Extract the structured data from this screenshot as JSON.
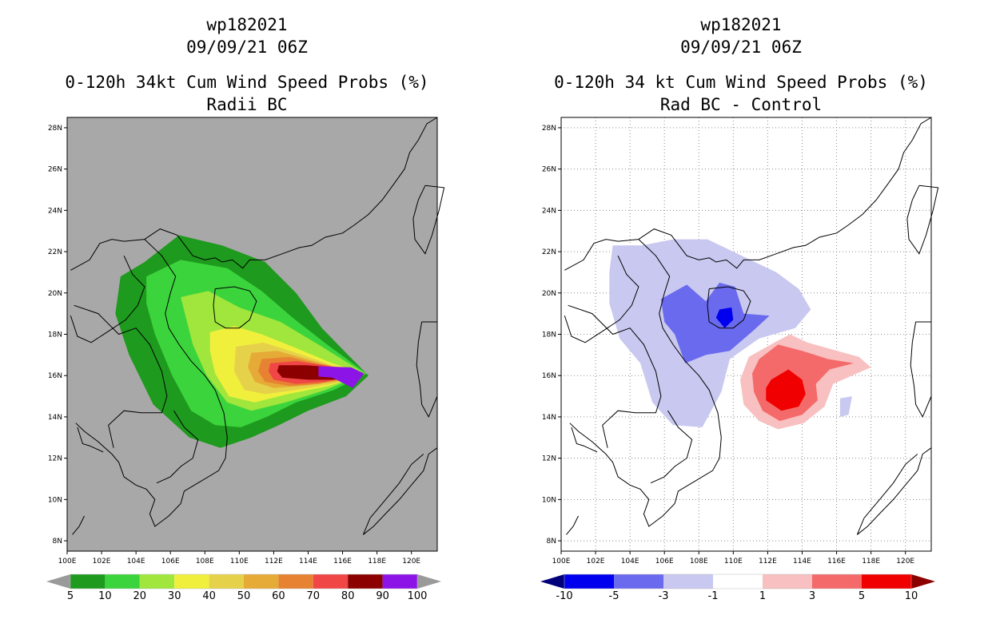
{
  "chart_data": [
    {
      "type": "heatmap",
      "name": "radii-bc",
      "title_lines": [
        "wp182021",
        "09/09/21 06Z",
        "0-120h 34kt Cum Wind Speed Probs (%)",
        "Radii BC"
      ],
      "x_ticks": [
        "100E",
        "102E",
        "104E",
        "106E",
        "108E",
        "110E",
        "112E",
        "114E",
        "116E",
        "118E",
        "120E"
      ],
      "y_ticks": [
        "8N",
        "10N",
        "12N",
        "14N",
        "16N",
        "18N",
        "20N",
        "22N",
        "24N",
        "26N",
        "28N"
      ],
      "xlim": [
        100,
        121.5
      ],
      "ylim": [
        7.5,
        28.5
      ],
      "grid": false,
      "background": "#a8a8a8",
      "colorbar": {
        "levels": [
          "5",
          "10",
          "20",
          "30",
          "40",
          "50",
          "60",
          "70",
          "80",
          "90",
          "100"
        ],
        "colors": [
          "#9a9a9a",
          "#1e9a1e",
          "#3cd43c",
          "#a0e63c",
          "#f0f03c",
          "#e6d24a",
          "#e6aa36",
          "#e68232",
          "#f04646",
          "#8c0000",
          "#8c14e6",
          "#9a9a9a"
        ]
      },
      "contours": [
        {
          "level": 5,
          "color": "#1e9a1e",
          "pts": [
            [
              104.5,
              21.5
            ],
            [
              106.5,
              22.8
            ],
            [
              109,
              22.3
            ],
            [
              111.5,
              21.5
            ],
            [
              113.3,
              20
            ],
            [
              114.8,
              18.3
            ],
            [
              116.2,
              17.1
            ],
            [
              117.5,
              16
            ],
            [
              116.2,
              15
            ],
            [
              114,
              14.3
            ],
            [
              112.3,
              13.6
            ],
            [
              110.7,
              13
            ],
            [
              108.9,
              12.5
            ],
            [
              107.1,
              13
            ],
            [
              105,
              14.6
            ],
            [
              103.6,
              17
            ],
            [
              102.8,
              19
            ],
            [
              103.1,
              20.8
            ]
          ]
        },
        {
          "level": 10,
          "color": "#3cd43c",
          "pts": [
            [
              104.6,
              20.8
            ],
            [
              106.6,
              21.6
            ],
            [
              109.3,
              21.2
            ],
            [
              111.3,
              20.1
            ],
            [
              113.1,
              18.8
            ],
            [
              115.1,
              17.5
            ],
            [
              117.4,
              16.1
            ],
            [
              115.5,
              15.3
            ],
            [
              113.3,
              14.7
            ],
            [
              111.6,
              14
            ],
            [
              110.1,
              13.5
            ],
            [
              108.6,
              13.6
            ],
            [
              107.2,
              14.3
            ],
            [
              106.1,
              16
            ],
            [
              105.1,
              18
            ],
            [
              104.6,
              19.5
            ]
          ]
        },
        {
          "level": 20,
          "color": "#a0e63c",
          "pts": [
            [
              106.6,
              19.8
            ],
            [
              108.2,
              20.1
            ],
            [
              110,
              19.3
            ],
            [
              112.4,
              18.6
            ],
            [
              114.6,
              17.5
            ],
            [
              117.3,
              16.1
            ],
            [
              115,
              15.3
            ],
            [
              112.7,
              14.7
            ],
            [
              110.7,
              14.3
            ],
            [
              109.3,
              14.7
            ],
            [
              108.1,
              16
            ],
            [
              107.3,
              17.5
            ]
          ]
        },
        {
          "level": 30,
          "color": "#f0f03c",
          "pts": [
            [
              108.3,
              18.1
            ],
            [
              109.7,
              18.4
            ],
            [
              111.3,
              18
            ],
            [
              113.1,
              17.4
            ],
            [
              115.4,
              16.6
            ],
            [
              117.3,
              16.1
            ],
            [
              115.2,
              15.5
            ],
            [
              112.8,
              15.1
            ],
            [
              110.9,
              14.7
            ],
            [
              109.4,
              15
            ],
            [
              108.6,
              16.1
            ],
            [
              108.3,
              17.2
            ]
          ]
        },
        {
          "level": 40,
          "color": "#e6d24a",
          "pts": [
            [
              109.8,
              17.4
            ],
            [
              111.4,
              17.6
            ],
            [
              113.3,
              17.1
            ],
            [
              115.4,
              16.5
            ],
            [
              117.3,
              16.1
            ],
            [
              115.4,
              15.6
            ],
            [
              113.3,
              15.3
            ],
            [
              111.5,
              15.1
            ],
            [
              110.3,
              15.3
            ],
            [
              109.7,
              16.2
            ]
          ]
        },
        {
          "level": 50,
          "color": "#e6aa36",
          "pts": [
            [
              110.7,
              17.1
            ],
            [
              112.2,
              17.2
            ],
            [
              113.9,
              16.8
            ],
            [
              115.6,
              16.4
            ],
            [
              117.3,
              16.1
            ],
            [
              115.6,
              15.7
            ],
            [
              113.7,
              15.5
            ],
            [
              112,
              15.4
            ],
            [
              110.9,
              15.7
            ],
            [
              110.5,
              16.4
            ]
          ]
        },
        {
          "level": 60,
          "color": "#e68232",
          "pts": [
            [
              111.3,
              16.8
            ],
            [
              112.9,
              16.9
            ],
            [
              114.4,
              16.6
            ],
            [
              117.3,
              16.1
            ],
            [
              114.6,
              15.6
            ],
            [
              112.9,
              15.5
            ],
            [
              111.5,
              15.7
            ],
            [
              111.1,
              16.2
            ]
          ]
        },
        {
          "level": 70,
          "color": "#f04646",
          "pts": [
            [
              111.8,
              16.6
            ],
            [
              113.3,
              16.7
            ],
            [
              115,
              16.5
            ],
            [
              117.3,
              16.1
            ],
            [
              115,
              15.7
            ],
            [
              113.3,
              15.6
            ],
            [
              112,
              15.8
            ],
            [
              111.7,
              16.2
            ]
          ]
        },
        {
          "level": 80,
          "color": "#8c0000",
          "pts": [
            [
              112.3,
              16.5
            ],
            [
              113.9,
              16.5
            ],
            [
              115.5,
              16.4
            ],
            [
              117.1,
              16.1
            ],
            [
              115.6,
              15.8
            ],
            [
              114,
              15.8
            ],
            [
              112.5,
              15.9
            ],
            [
              112.2,
              16.2
            ]
          ]
        },
        {
          "level": 90,
          "color": "#8c14e6",
          "pts": [
            [
              114.6,
              16.45
            ],
            [
              116.5,
              16.4
            ],
            [
              117.25,
              16.1
            ],
            [
              116.6,
              15.4
            ],
            [
              115.4,
              15.9
            ],
            [
              114.6,
              15.95
            ]
          ]
        }
      ]
    },
    {
      "type": "heatmap",
      "name": "rad-bc-minus-control",
      "title_lines": [
        "wp182021",
        "09/09/21 06Z",
        "0-120h 34 kt Cum Wind Speed Probs (%)",
        "Rad BC - Control"
      ],
      "x_ticks": [
        "100E",
        "102E",
        "104E",
        "106E",
        "108E",
        "110E",
        "112E",
        "114E",
        "116E",
        "118E",
        "120E"
      ],
      "y_ticks": [
        "8N",
        "10N",
        "12N",
        "14N",
        "16N",
        "18N",
        "20N",
        "22N",
        "24N",
        "26N",
        "28N"
      ],
      "xlim": [
        100,
        121.5
      ],
      "ylim": [
        7.5,
        28.5
      ],
      "grid": true,
      "background": "#ffffff",
      "colorbar": {
        "levels": [
          "-10",
          "-5",
          "-3",
          "-1",
          "1",
          "3",
          "5",
          "10"
        ],
        "colors": [
          "#00007a",
          "#0000ee",
          "#6a6aee",
          "#c8c8f0",
          "#ffffff",
          "#f8c0c0",
          "#f46a6a",
          "#f00000",
          "#8c0000"
        ]
      },
      "contours": [
        {
          "level": -1,
          "color": "#c8c8f0",
          "pts": [
            [
              103,
              22.3
            ],
            [
              104.7,
              22.3
            ],
            [
              106.5,
              22.6
            ],
            [
              108.5,
              22.6
            ],
            [
              110.5,
              21.8
            ],
            [
              112.5,
              21
            ],
            [
              113.8,
              20.2
            ],
            [
              114.5,
              19.2
            ],
            [
              113.6,
              18.3
            ],
            [
              111.5,
              17.8
            ],
            [
              109.8,
              16.8
            ],
            [
              109.3,
              15.2
            ],
            [
              108.2,
              13.5
            ],
            [
              106.5,
              13.6
            ],
            [
              105.3,
              14.7
            ],
            [
              104.6,
              16.6
            ],
            [
              103.4,
              17.8
            ],
            [
              102.8,
              19.5
            ],
            [
              102.8,
              21
            ]
          ]
        },
        {
          "level": -1,
          "color": "#c8c8f0",
          "pts": [
            [
              116.2,
              14.9
            ],
            [
              116.9,
              15
            ],
            [
              116.7,
              14.1
            ],
            [
              116.2,
              14
            ]
          ]
        },
        {
          "level": -3,
          "color": "#6a6aee",
          "pts": [
            [
              105.8,
              19.7
            ],
            [
              107.3,
              20.4
            ],
            [
              108.4,
              19.6
            ],
            [
              109.2,
              20.5
            ],
            [
              110.1,
              20.3
            ],
            [
              110.6,
              19
            ],
            [
              112.1,
              18.9
            ],
            [
              111.2,
              18.2
            ],
            [
              109.8,
              17.2
            ],
            [
              108.4,
              17
            ],
            [
              107.2,
              16.6
            ],
            [
              106.6,
              18
            ],
            [
              106,
              18.6
            ]
          ]
        },
        {
          "level": -5,
          "color": "#0000ee",
          "pts": [
            [
              109.2,
              19.2
            ],
            [
              109.9,
              19.3
            ],
            [
              110,
              18.7
            ],
            [
              109.5,
              18.3
            ],
            [
              109,
              18.8
            ]
          ]
        },
        {
          "level": 1,
          "color": "#f8c0c0",
          "pts": [
            [
              112.4,
              17.6
            ],
            [
              113.3,
              18
            ],
            [
              114.3,
              17.6
            ],
            [
              115.6,
              17.3
            ],
            [
              117.3,
              16.9
            ],
            [
              118,
              16.4
            ],
            [
              116.9,
              16
            ],
            [
              115.8,
              15.6
            ],
            [
              115.3,
              14.5
            ],
            [
              114.1,
              13.7
            ],
            [
              112.6,
              13.4
            ],
            [
              111.5,
              13.8
            ],
            [
              110.6,
              14.6
            ],
            [
              110.4,
              15.8
            ],
            [
              110.9,
              16.9
            ]
          ]
        },
        {
          "level": 3,
          "color": "#f46a6a",
          "pts": [
            [
              111.5,
              16.8
            ],
            [
              112.6,
              17.5
            ],
            [
              114,
              17.2
            ],
            [
              115.5,
              16.8
            ],
            [
              117,
              16.6
            ],
            [
              115.6,
              16.3
            ],
            [
              114.8,
              15.6
            ],
            [
              114.9,
              14.8
            ],
            [
              114,
              14.1
            ],
            [
              112.7,
              13.8
            ],
            [
              111.7,
              14.3
            ],
            [
              111.2,
              15.2
            ],
            [
              111.1,
              16.1
            ]
          ]
        },
        {
          "level": 5,
          "color": "#f00000",
          "pts": [
            [
              112.2,
              15.8
            ],
            [
              113.2,
              16.3
            ],
            [
              114,
              15.8
            ],
            [
              114.2,
              15.1
            ],
            [
              113.8,
              14.5
            ],
            [
              112.8,
              14.3
            ],
            [
              111.9,
              14.8
            ],
            [
              111.9,
              15.4
            ]
          ]
        }
      ]
    }
  ]
}
